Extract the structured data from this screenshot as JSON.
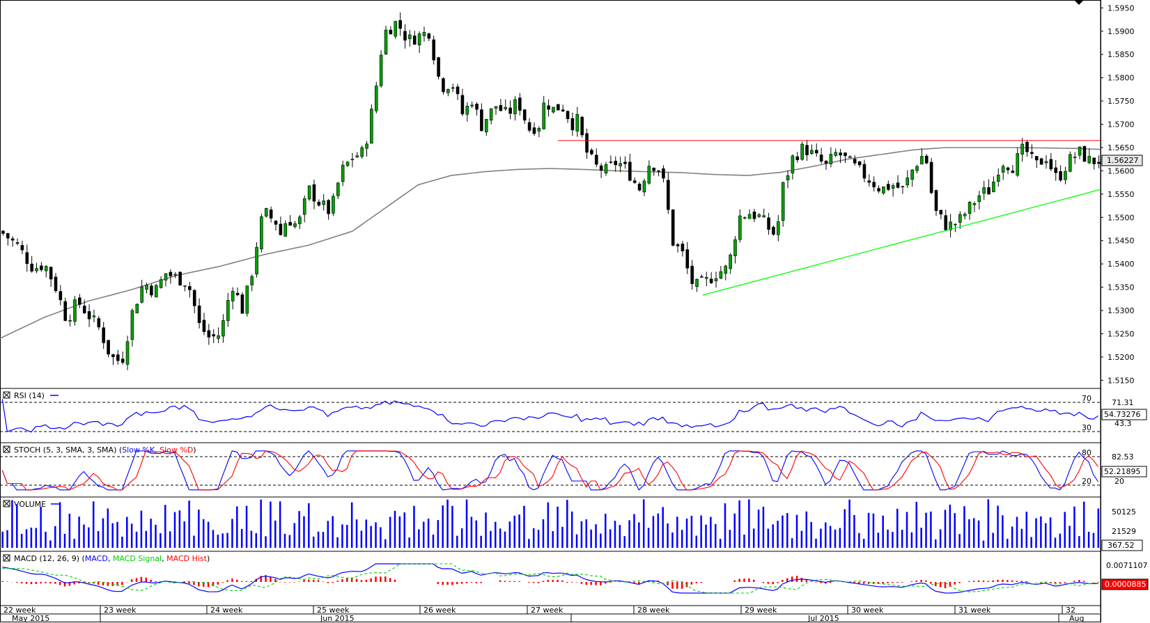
{
  "chart_data": {
    "type": "candlestick",
    "price_axis": {
      "ticks": [
        "1.5950",
        "1.5900",
        "1.5850",
        "1.5800",
        "1.5750",
        "1.5700",
        "1.5650",
        "1.5600",
        "1.5550",
        "1.5500",
        "1.5450",
        "1.5400",
        "1.5350",
        "1.5300",
        "1.5250",
        "1.5200",
        "1.5150"
      ],
      "range": [
        1.514,
        1.5955
      ]
    },
    "current_price_label": "1.56227",
    "resistance_level": 1.5665,
    "support_line": {
      "from": {
        "x": 0.6385,
        "y": 1.5333
      },
      "to": {
        "x": 1.0,
        "y": 1.556
      }
    },
    "ma_series": [
      [
        0.0,
        1.524
      ],
      [
        0.04,
        1.5285
      ],
      [
        0.08,
        1.532
      ],
      [
        0.12,
        1.5345
      ],
      [
        0.16,
        1.5375
      ],
      [
        0.2,
        1.5395
      ],
      [
        0.24,
        1.542
      ],
      [
        0.28,
        1.544
      ],
      [
        0.32,
        1.547
      ],
      [
        0.35,
        1.552
      ],
      [
        0.38,
        1.557
      ],
      [
        0.41,
        1.559
      ],
      [
        0.44,
        1.5598
      ],
      [
        0.47,
        1.5603
      ],
      [
        0.5,
        1.5605
      ],
      [
        0.53,
        1.5603
      ],
      [
        0.56,
        1.56
      ],
      [
        0.59,
        1.5598
      ],
      [
        0.62,
        1.5596
      ],
      [
        0.65,
        1.5592
      ],
      [
        0.68,
        1.559
      ],
      [
        0.71,
        1.5597
      ],
      [
        0.74,
        1.561
      ],
      [
        0.77,
        1.5625
      ],
      [
        0.8,
        1.5635
      ],
      [
        0.83,
        1.5645
      ],
      [
        0.86,
        1.565
      ],
      [
        0.89,
        1.565
      ],
      [
        0.92,
        1.565
      ],
      [
        0.95,
        1.5649
      ],
      [
        0.98,
        1.5648
      ],
      [
        1.0,
        1.5646
      ]
    ],
    "price_path": [
      [
        0.0,
        1.547
      ],
      [
        0.015,
        1.544
      ],
      [
        0.03,
        1.539
      ],
      [
        0.04,
        1.54
      ],
      [
        0.05,
        1.535
      ],
      [
        0.06,
        1.528
      ],
      [
        0.07,
        1.532
      ],
      [
        0.08,
        1.529
      ],
      [
        0.09,
        1.526
      ],
      [
        0.1,
        1.52
      ],
      [
        0.11,
        1.519
      ],
      [
        0.12,
        1.53
      ],
      [
        0.13,
        1.536
      ],
      [
        0.14,
        1.534
      ],
      [
        0.15,
        1.538
      ],
      [
        0.16,
        1.537
      ],
      [
        0.17,
        1.536
      ],
      [
        0.175,
        1.532
      ],
      [
        0.18,
        1.527
      ],
      [
        0.19,
        1.524
      ],
      [
        0.2,
        1.525
      ],
      [
        0.21,
        1.536
      ],
      [
        0.22,
        1.53
      ],
      [
        0.23,
        1.54
      ],
      [
        0.235,
        1.548
      ],
      [
        0.24,
        1.551
      ],
      [
        0.25,
        1.549
      ],
      [
        0.255,
        1.546
      ],
      [
        0.26,
        1.55
      ],
      [
        0.27,
        1.548
      ],
      [
        0.28,
        1.556
      ],
      [
        0.29,
        1.553
      ],
      [
        0.3,
        1.551
      ],
      [
        0.305,
        1.556
      ],
      [
        0.31,
        1.56
      ],
      [
        0.32,
        1.563
      ],
      [
        0.33,
        1.564
      ],
      [
        0.335,
        1.57
      ],
      [
        0.34,
        1.576
      ],
      [
        0.345,
        1.585
      ],
      [
        0.35,
        1.59
      ],
      [
        0.36,
        1.592
      ],
      [
        0.37,
        1.588
      ],
      [
        0.38,
        1.589
      ],
      [
        0.39,
        1.59
      ],
      [
        0.395,
        1.583
      ],
      [
        0.4,
        1.578
      ],
      [
        0.41,
        1.579
      ],
      [
        0.42,
        1.572
      ],
      [
        0.43,
        1.576
      ],
      [
        0.435,
        1.569
      ],
      [
        0.44,
        1.571
      ],
      [
        0.45,
        1.574
      ],
      [
        0.46,
        1.572
      ],
      [
        0.47,
        1.575
      ],
      [
        0.48,
        1.569
      ],
      [
        0.49,
        1.57
      ],
      [
        0.495,
        1.576
      ],
      [
        0.5,
        1.573
      ],
      [
        0.51,
        1.574
      ],
      [
        0.52,
        1.57
      ],
      [
        0.525,
        1.571
      ],
      [
        0.53,
        1.565
      ],
      [
        0.54,
        1.561
      ],
      [
        0.55,
        1.56
      ],
      [
        0.56,
        1.562
      ],
      [
        0.57,
        1.56
      ],
      [
        0.575,
        1.558
      ],
      [
        0.58,
        1.556
      ],
      [
        0.59,
        1.562
      ],
      [
        0.6,
        1.56
      ],
      [
        0.605,
        1.554
      ],
      [
        0.61,
        1.545
      ],
      [
        0.62,
        1.542
      ],
      [
        0.625,
        1.538
      ],
      [
        0.63,
        1.535
      ],
      [
        0.64,
        1.536
      ],
      [
        0.65,
        1.538
      ],
      [
        0.66,
        1.539
      ],
      [
        0.665,
        1.543
      ],
      [
        0.67,
        1.55
      ],
      [
        0.68,
        1.551
      ],
      [
        0.69,
        1.55
      ],
      [
        0.7,
        1.547
      ],
      [
        0.705,
        1.546
      ],
      [
        0.71,
        1.556
      ],
      [
        0.72,
        1.563
      ],
      [
        0.73,
        1.565
      ],
      [
        0.74,
        1.563
      ],
      [
        0.75,
        1.561
      ],
      [
        0.76,
        1.564
      ],
      [
        0.77,
        1.562
      ],
      [
        0.78,
        1.56
      ],
      [
        0.79,
        1.558
      ],
      [
        0.8,
        1.556
      ],
      [
        0.81,
        1.557
      ],
      [
        0.82,
        1.556
      ],
      [
        0.83,
        1.561
      ],
      [
        0.84,
        1.564
      ],
      [
        0.845,
        1.556
      ],
      [
        0.85,
        1.551
      ],
      [
        0.86,
        1.548
      ],
      [
        0.87,
        1.549
      ],
      [
        0.88,
        1.552
      ],
      [
        0.89,
        1.555
      ],
      [
        0.9,
        1.556
      ],
      [
        0.905,
        1.56
      ],
      [
        0.91,
        1.562
      ],
      [
        0.92,
        1.561
      ],
      [
        0.93,
        1.565
      ],
      [
        0.94,
        1.561
      ],
      [
        0.95,
        1.563
      ],
      [
        0.96,
        1.558
      ],
      [
        0.97,
        1.562
      ],
      [
        0.98,
        1.564
      ],
      [
        0.99,
        1.562
      ],
      [
        1.0,
        1.5623
      ]
    ],
    "rsi": {
      "label": "RSI (14)",
      "levels": [
        "70",
        "30"
      ],
      "right_labels": [
        "71.31",
        "54.73276",
        "43.3"
      ]
    },
    "stoch": {
      "label_prefix": "STOCH (5, 3, SMA, 3, SMA)",
      "series": [
        "Slow %K",
        "Slow %D"
      ],
      "levels": [
        "80",
        "20"
      ],
      "right_labels": [
        "82.53",
        "52.21895",
        "20"
      ]
    },
    "volume": {
      "label": "VOLUME",
      "right_labels": [
        "50125",
        "21529",
        "367.52"
      ]
    },
    "macd": {
      "label_prefix": "MACD (12, 26, 9)",
      "series": [
        "MACD",
        "MACD Signal",
        "MACD Hist"
      ],
      "right_labels": [
        "0.0071107",
        "0.0000885"
      ]
    },
    "x_axis": {
      "weeks": [
        "22 week",
        "23 week",
        "24 week",
        "25 week",
        "26 week",
        "27 week",
        "28 week",
        "29 week",
        "30 week",
        "31 week",
        "32"
      ],
      "months": [
        "May 2015",
        "Jun 2015",
        "Jul 2015",
        "Aug"
      ]
    },
    "colors": {
      "candle_up": "#00a000",
      "candle_down": "#000000",
      "ma": "#808080",
      "resistance": "#ff0000",
      "support": "#00ff00",
      "blue": "#0000ff",
      "red": "#ff0000",
      "green": "#00cc00"
    }
  }
}
